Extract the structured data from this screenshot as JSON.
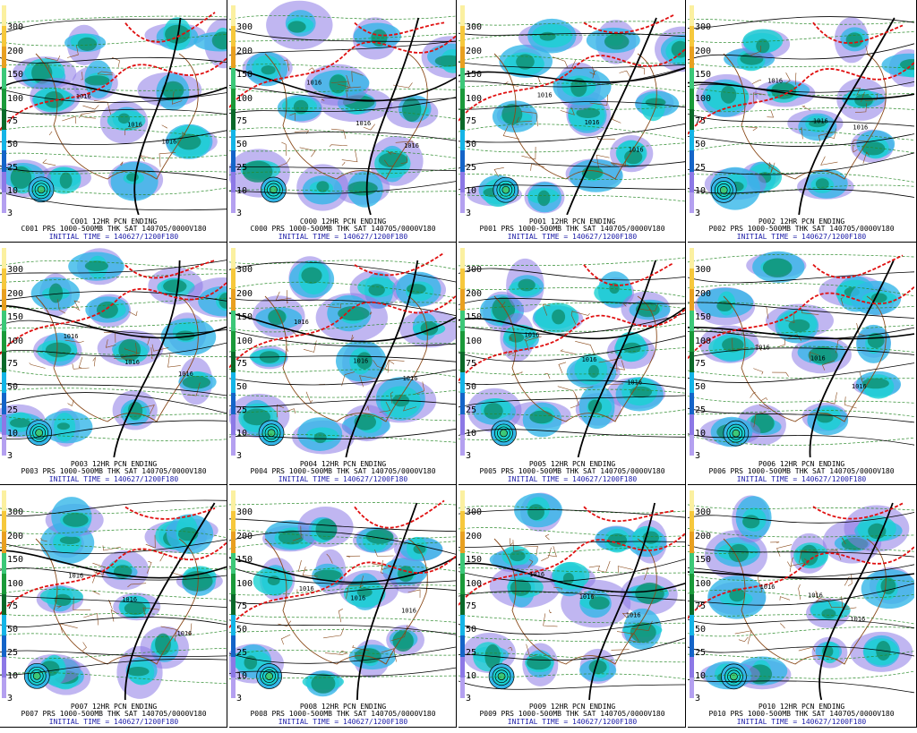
{
  "colorbar": {
    "ticks": [
      "300",
      "200",
      "150",
      "100",
      "75",
      "50",
      "25",
      "10",
      "3"
    ],
    "colors": [
      "#fbf0a0",
      "#f6c83c",
      "#e8a020",
      "#3cc878",
      "#1a9a3a",
      "#0a6a2a",
      "#14b4e6",
      "#1464c8",
      "#8c78e6",
      "#b4a0f0"
    ]
  },
  "map_style": {
    "precip_colors": [
      "#8c7ae6",
      "#34b6e8",
      "#1ad2d2",
      "#0f8f6f"
    ],
    "height_line": "#000000",
    "thickness_line": "#e01010",
    "stream_line": "#2a8a2a",
    "border_color": "#8a4a1a"
  },
  "panels": [
    {
      "id": "C001",
      "line1": "C001 12HR PCN ENDING",
      "line2": "C001 PRS 1000-500MB THK SAT 140705/0000V180",
      "line3": "INITIAL TIME = 140627/1200F180",
      "labels": [
        "1016",
        "1016",
        "1016"
      ]
    },
    {
      "id": "C000",
      "line1": "C000 12HR PCN ENDING",
      "line2": "C000 PRS 1000-500MB THK SAT 140705/0000V180",
      "line3": "INITIAL TIME = 140627/1200F180",
      "labels": [
        "1016",
        "1016",
        "1016"
      ]
    },
    {
      "id": "P001",
      "line1": "P001 12HR PCN ENDING",
      "line2": "P001 PRS 1000-500MB THK SAT 140705/0000V180",
      "line3": "INITIAL TIME = 140627/1200F180",
      "labels": [
        "1016",
        "1016",
        "1016"
      ]
    },
    {
      "id": "P002",
      "line1": "P002 12HR PCN ENDING",
      "line2": "P002 PRS 1000-500MB THK SAT 140705/0000V180",
      "line3": "INITIAL TIME = 140627/1200F180",
      "labels": [
        "1016",
        "1016",
        "1016"
      ]
    },
    {
      "id": "P003",
      "line1": "P003 12HR PCN ENDING",
      "line2": "P003 PRS 1000-500MB THK SAT 140705/0000V180",
      "line3": "INITIAL TIME = 140627/1200F180",
      "labels": [
        "1016",
        "1016",
        "1016"
      ]
    },
    {
      "id": "P004",
      "line1": "P004 12HR PCN ENDING",
      "line2": "P004 PRS 1000-500MB THK SAT 140705/0000V180",
      "line3": "INITIAL TIME = 140627/1200F180",
      "labels": [
        "1016",
        "1016",
        "1016"
      ]
    },
    {
      "id": "P005",
      "line1": "P005 12HR PCN ENDING",
      "line2": "P005 PRS 1000-500MB THK SAT 140705/0000V180",
      "line3": "INITIAL TIME = 140627/1200F180",
      "labels": [
        "1016",
        "1016",
        "1016"
      ]
    },
    {
      "id": "P006",
      "line1": "P006 12HR PCN ENDING",
      "line2": "P006 PRS 1000-500MB THK SAT 140705/0000V180",
      "line3": "INITIAL TIME = 140627/1200F180",
      "labels": [
        "1016",
        "1016",
        "1016"
      ]
    },
    {
      "id": "P007",
      "line1": "P007 12HR PCN ENDING",
      "line2": "P007 PRS 1000-500MB THK SAT 140705/0000V180",
      "line3": "INITIAL TIME = 140627/1200F180",
      "labels": [
        "1016",
        "1016",
        "1016"
      ]
    },
    {
      "id": "P008",
      "line1": "P008 12HR PCN ENDING",
      "line2": "P008 PRS 1000-500MB THK SAT 140705/0000V180",
      "line3": "INITIAL TIME = 140627/1200F180",
      "labels": [
        "1016",
        "1016",
        "1016"
      ]
    },
    {
      "id": "P009",
      "line1": "P009 12HR PCN ENDING",
      "line2": "P009 PRS 1000-500MB THK SAT 140705/0000V180",
      "line3": "INITIAL TIME = 140627/1200F180",
      "labels": [
        "1016",
        "1016",
        "1016"
      ]
    },
    {
      "id": "P010",
      "line1": "P010 12HR PCN ENDING",
      "line2": "P010 PRS 1000-500MB THK SAT 140705/0000V180",
      "line3": "INITIAL TIME = 140627/1200F180",
      "labels": [
        "1016",
        "1016",
        "1016"
      ]
    }
  ]
}
